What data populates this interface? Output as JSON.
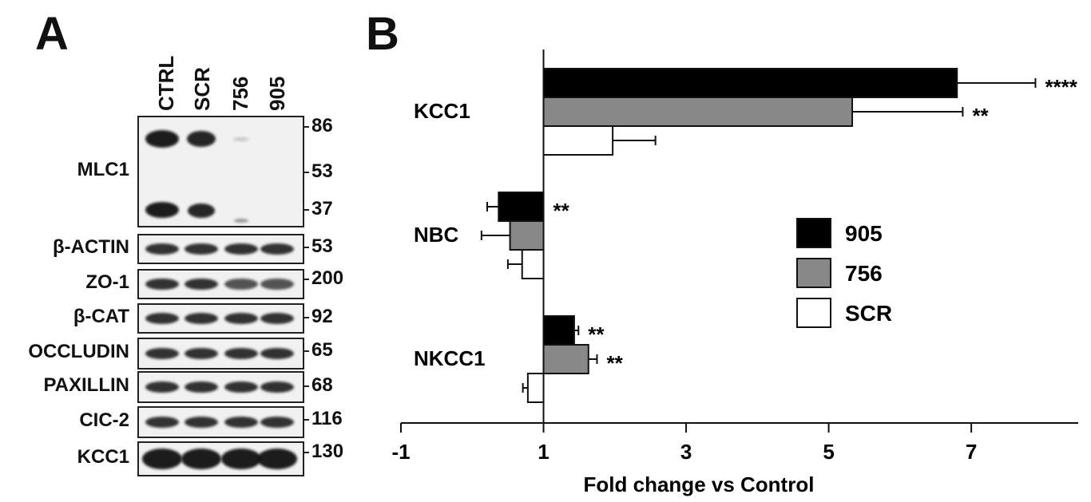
{
  "panel_a": {
    "letter": "A",
    "lanes": [
      "CTRL",
      "SCR",
      "756",
      "905"
    ],
    "rows": [
      {
        "label": "MLC1",
        "markers": [
          "86",
          "53",
          "37"
        ]
      },
      {
        "label": "β-ACTIN",
        "markers": [
          "53"
        ]
      },
      {
        "label": "ZO-1",
        "markers": [
          "200"
        ]
      },
      {
        "label": "β-CAT",
        "markers": [
          "92"
        ]
      },
      {
        "label": "OCCLUDIN",
        "markers": [
          "65"
        ]
      },
      {
        "label": "PAXILLIN",
        "markers": [
          "68"
        ]
      },
      {
        "label": "CIC-2",
        "markers": [
          "116"
        ]
      },
      {
        "label": "KCC1",
        "markers": [
          "130"
        ]
      }
    ]
  },
  "panel_b": {
    "letter": "B"
  },
  "chart_data": {
    "type": "bar",
    "orientation": "horizontal",
    "categories": [
      "KCC1",
      "NBC",
      "NKCC1"
    ],
    "series": [
      {
        "name": "905",
        "color": "#000000",
        "values": [
          6.8,
          0.37,
          1.43
        ],
        "errors": [
          1.1,
          0.16,
          0.06
        ],
        "significance": [
          "****",
          "**",
          "**"
        ]
      },
      {
        "name": "756",
        "color": "#888888",
        "values": [
          5.33,
          0.53,
          1.63
        ],
        "errors": [
          1.55,
          0.4,
          0.12
        ],
        "significance": [
          "**",
          "",
          "**"
        ]
      },
      {
        "name": "SCR",
        "color": "#ffffff",
        "values": [
          1.97,
          0.7,
          0.78
        ],
        "errors": [
          0.6,
          0.2,
          0.07
        ],
        "significance": [
          "",
          "",
          ""
        ]
      }
    ],
    "xlabel": "Fold change vs Control",
    "xlim": [
      -1,
      8.5
    ],
    "xticks": [
      -1,
      1,
      3,
      5,
      7
    ],
    "baseline": 1,
    "legend": "right"
  }
}
